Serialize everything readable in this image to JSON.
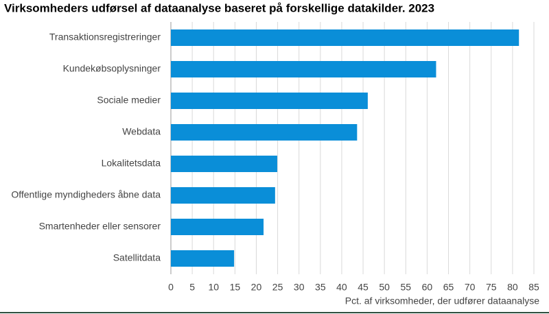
{
  "chart_data": {
    "type": "barh",
    "title": "Virksomheders udførsel af dataanalyse baseret på forskellige datakilder. 2023",
    "x_label": "Pct. af virksomheder, der udfører dataanalyse",
    "categories": [
      "Transaktionsregistreringer",
      "Kundekøbsoplysninger",
      "Sociale medier",
      "Webdata",
      "Lokalitetsdata",
      "Offentlige myndigheders åbne data",
      "Smartenheder eller sensorer",
      "Satellitdata"
    ],
    "values": [
      81.5,
      62.1,
      46.1,
      43.6,
      24.9,
      24.4,
      21.7,
      14.8
    ],
    "color": "#0a8ed8",
    "xlim": [
      0,
      85
    ],
    "xticks": [
      0,
      5,
      10,
      15,
      20,
      25,
      30,
      35,
      40,
      45,
      50,
      55,
      60,
      65,
      70,
      75,
      80,
      85
    ],
    "grid": true
  }
}
